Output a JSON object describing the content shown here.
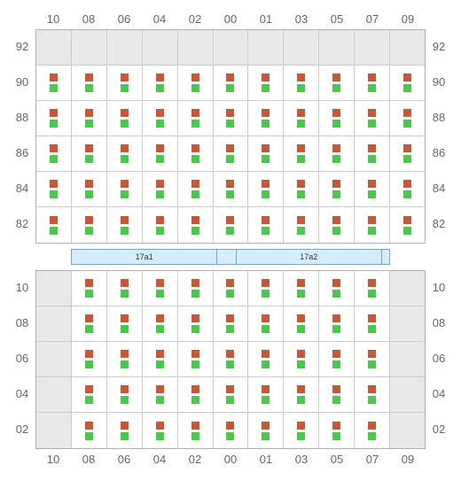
{
  "columns": [
    "10",
    "08",
    "06",
    "04",
    "02",
    "00",
    "01",
    "03",
    "05",
    "07",
    "09"
  ],
  "top": {
    "rows": [
      "92",
      "90",
      "88",
      "86",
      "84",
      "82"
    ],
    "pattern": {
      "92": [
        0,
        0,
        0,
        0,
        0,
        0,
        0,
        0,
        0,
        0,
        0
      ],
      "90": [
        1,
        1,
        1,
        1,
        1,
        1,
        1,
        1,
        1,
        1,
        1
      ],
      "88": [
        1,
        1,
        1,
        1,
        1,
        1,
        1,
        1,
        1,
        1,
        1
      ],
      "86": [
        1,
        1,
        1,
        1,
        1,
        1,
        1,
        1,
        1,
        1,
        1
      ],
      "84": [
        1,
        1,
        1,
        1,
        1,
        1,
        1,
        1,
        1,
        1,
        1
      ],
      "82": [
        1,
        1,
        1,
        1,
        1,
        1,
        1,
        1,
        1,
        1,
        1
      ]
    }
  },
  "middle": {
    "seg1": "17a1",
    "seg2": "",
    "seg3": "17a2",
    "seg4": ""
  },
  "bottom": {
    "rows": [
      "10",
      "08",
      "06",
      "04",
      "02"
    ],
    "pattern": {
      "10": [
        0,
        1,
        1,
        1,
        1,
        1,
        1,
        1,
        1,
        1,
        0
      ],
      "08": [
        0,
        1,
        1,
        1,
        1,
        1,
        1,
        1,
        1,
        1,
        0
      ],
      "06": [
        0,
        1,
        1,
        1,
        1,
        1,
        1,
        1,
        1,
        1,
        0
      ],
      "04": [
        0,
        1,
        1,
        1,
        1,
        1,
        1,
        1,
        1,
        1,
        0
      ],
      "02": [
        0,
        1,
        1,
        1,
        1,
        1,
        1,
        1,
        1,
        1,
        0
      ]
    }
  },
  "style": {
    "filled_bg": "#ffffff",
    "empty_bg": "#e8e8e8",
    "top_square": "#cc5533",
    "bot_square": "#44cc44",
    "border": "#b0b0b0",
    "gridline": "#cccccc",
    "label_color": "#666666",
    "middle_bg": "#d4ecfb",
    "middle_border": "#66aadd"
  }
}
